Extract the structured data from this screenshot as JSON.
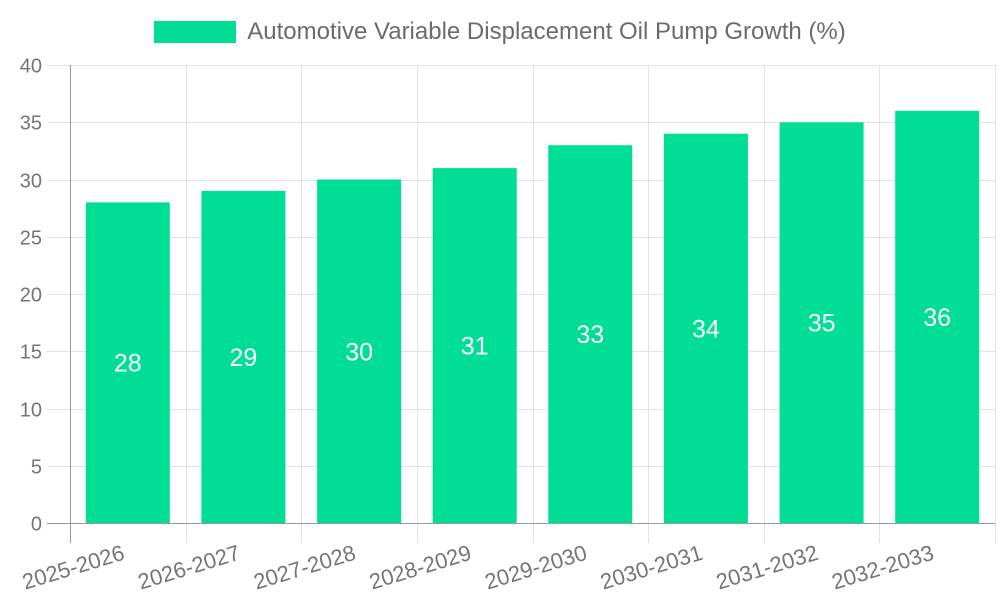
{
  "legend": {
    "label": "Automotive Variable Displacement Oil Pump Growth (%)"
  },
  "chart_data": {
    "type": "bar",
    "title": "Automotive Variable Displacement Oil Pump Growth (%)",
    "categories": [
      "2025-2026",
      "2026-2027",
      "2027-2028",
      "2028-2029",
      "2029-2030",
      "2030-2031",
      "2031-2032",
      "2032-2033"
    ],
    "values": [
      28,
      29,
      30,
      31,
      33,
      34,
      35,
      36
    ],
    "xlabel": "",
    "ylabel": "",
    "ylim": [
      0,
      40
    ],
    "ytick_step": 5,
    "yticks": [
      0,
      5,
      10,
      15,
      20,
      25,
      30,
      35,
      40
    ],
    "grid": true,
    "legend_position": "top",
    "value_labels": "inside-middle",
    "colors": {
      "bar": "#00DE96",
      "value_label": "#ffffff",
      "tick_label": "#757575",
      "legend_text": "#6b6b6b",
      "axis_line": "#999999",
      "grid_line": "#e2e2e2",
      "background": "#ffffff"
    }
  }
}
